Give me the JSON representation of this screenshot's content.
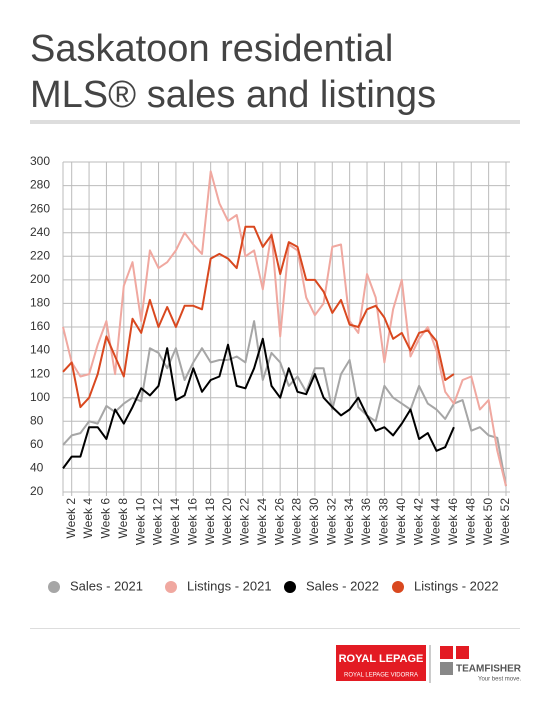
{
  "chart_data": {
    "type": "line",
    "title": "Saskatoon residential MLS® sales and listings",
    "categories": [
      null,
      "Week 2",
      null,
      "Week 4",
      null,
      "Week 6",
      null,
      "Week 8",
      null,
      "Week 10",
      null,
      "Week 12",
      null,
      "Week 14",
      null,
      "Week 16",
      null,
      "Week 18",
      null,
      "Week 20",
      null,
      "Week 22",
      null,
      "Week 24",
      null,
      "Week 26",
      null,
      "Week 28",
      null,
      "Week 30",
      null,
      "Week 32",
      null,
      "Week 34",
      null,
      "Week 36",
      null,
      "Week 38",
      null,
      "Week 40",
      null,
      "Week 42",
      null,
      "Week 44",
      null,
      "Week 46",
      null,
      "Week 48",
      null,
      "Week 50",
      null,
      "Week 52"
    ],
    "series": [
      {
        "name": "Sales - 2021",
        "color": "#a6a6a6",
        "values": [
          60,
          68,
          70,
          80,
          78,
          93,
          88,
          95,
          100,
          97,
          142,
          138,
          125,
          142,
          115,
          130,
          142,
          130,
          132,
          132,
          135,
          130,
          165,
          115,
          138,
          130,
          110,
          118,
          105,
          125,
          125,
          90,
          120,
          132,
          92,
          85,
          80,
          110,
          100,
          95,
          90,
          110,
          95,
          90,
          82,
          95,
          98,
          72,
          75,
          68,
          66,
          25
        ]
      },
      {
        "name": "Listings - 2021",
        "color": "#f0a8a0",
        "values": [
          160,
          130,
          118,
          120,
          145,
          165,
          120,
          195,
          215,
          165,
          225,
          210,
          215,
          225,
          240,
          230,
          222,
          292,
          265,
          250,
          255,
          220,
          225,
          192,
          240,
          152,
          230,
          225,
          185,
          170,
          180,
          228,
          230,
          165,
          155,
          205,
          185,
          130,
          175,
          200,
          135,
          150,
          160,
          140,
          105,
          95,
          115,
          118,
          90,
          98,
          55,
          25
        ]
      },
      {
        "name": "Sales - 2022",
        "color": "#000000",
        "values": [
          40,
          50,
          50,
          75,
          75,
          65,
          90,
          78,
          92,
          108,
          102,
          110,
          142,
          98,
          102,
          125,
          105,
          115,
          118,
          145,
          110,
          108,
          125,
          150,
          110,
          100,
          125,
          105,
          103,
          120,
          100,
          92,
          85,
          90,
          100,
          85,
          72,
          75,
          68,
          78,
          90,
          65,
          70,
          55,
          58,
          75,
          null,
          null,
          null,
          null,
          null,
          null
        ]
      },
      {
        "name": "Listings - 2022",
        "color": "#d9481f",
        "values": [
          122,
          130,
          92,
          100,
          120,
          152,
          135,
          118,
          167,
          155,
          183,
          160,
          177,
          160,
          178,
          178,
          175,
          218,
          222,
          218,
          210,
          245,
          245,
          228,
          238,
          205,
          232,
          228,
          200,
          200,
          190,
          172,
          183,
          162,
          160,
          175,
          178,
          168,
          150,
          155,
          140,
          155,
          157,
          148,
          115,
          120,
          null,
          null,
          null,
          null,
          null,
          null
        ]
      }
    ],
    "ylim": [
      20,
      300
    ],
    "yticks": [
      20,
      40,
      60,
      80,
      100,
      120,
      140,
      160,
      180,
      200,
      220,
      240,
      260,
      280,
      300
    ],
    "grid": true
  },
  "footer": {
    "brand": "ROYAL LEPAGE",
    "office": "ROYAL LEPAGE VIDORRA",
    "team": "TEAMFISHER",
    "tagline": "Your best move."
  }
}
